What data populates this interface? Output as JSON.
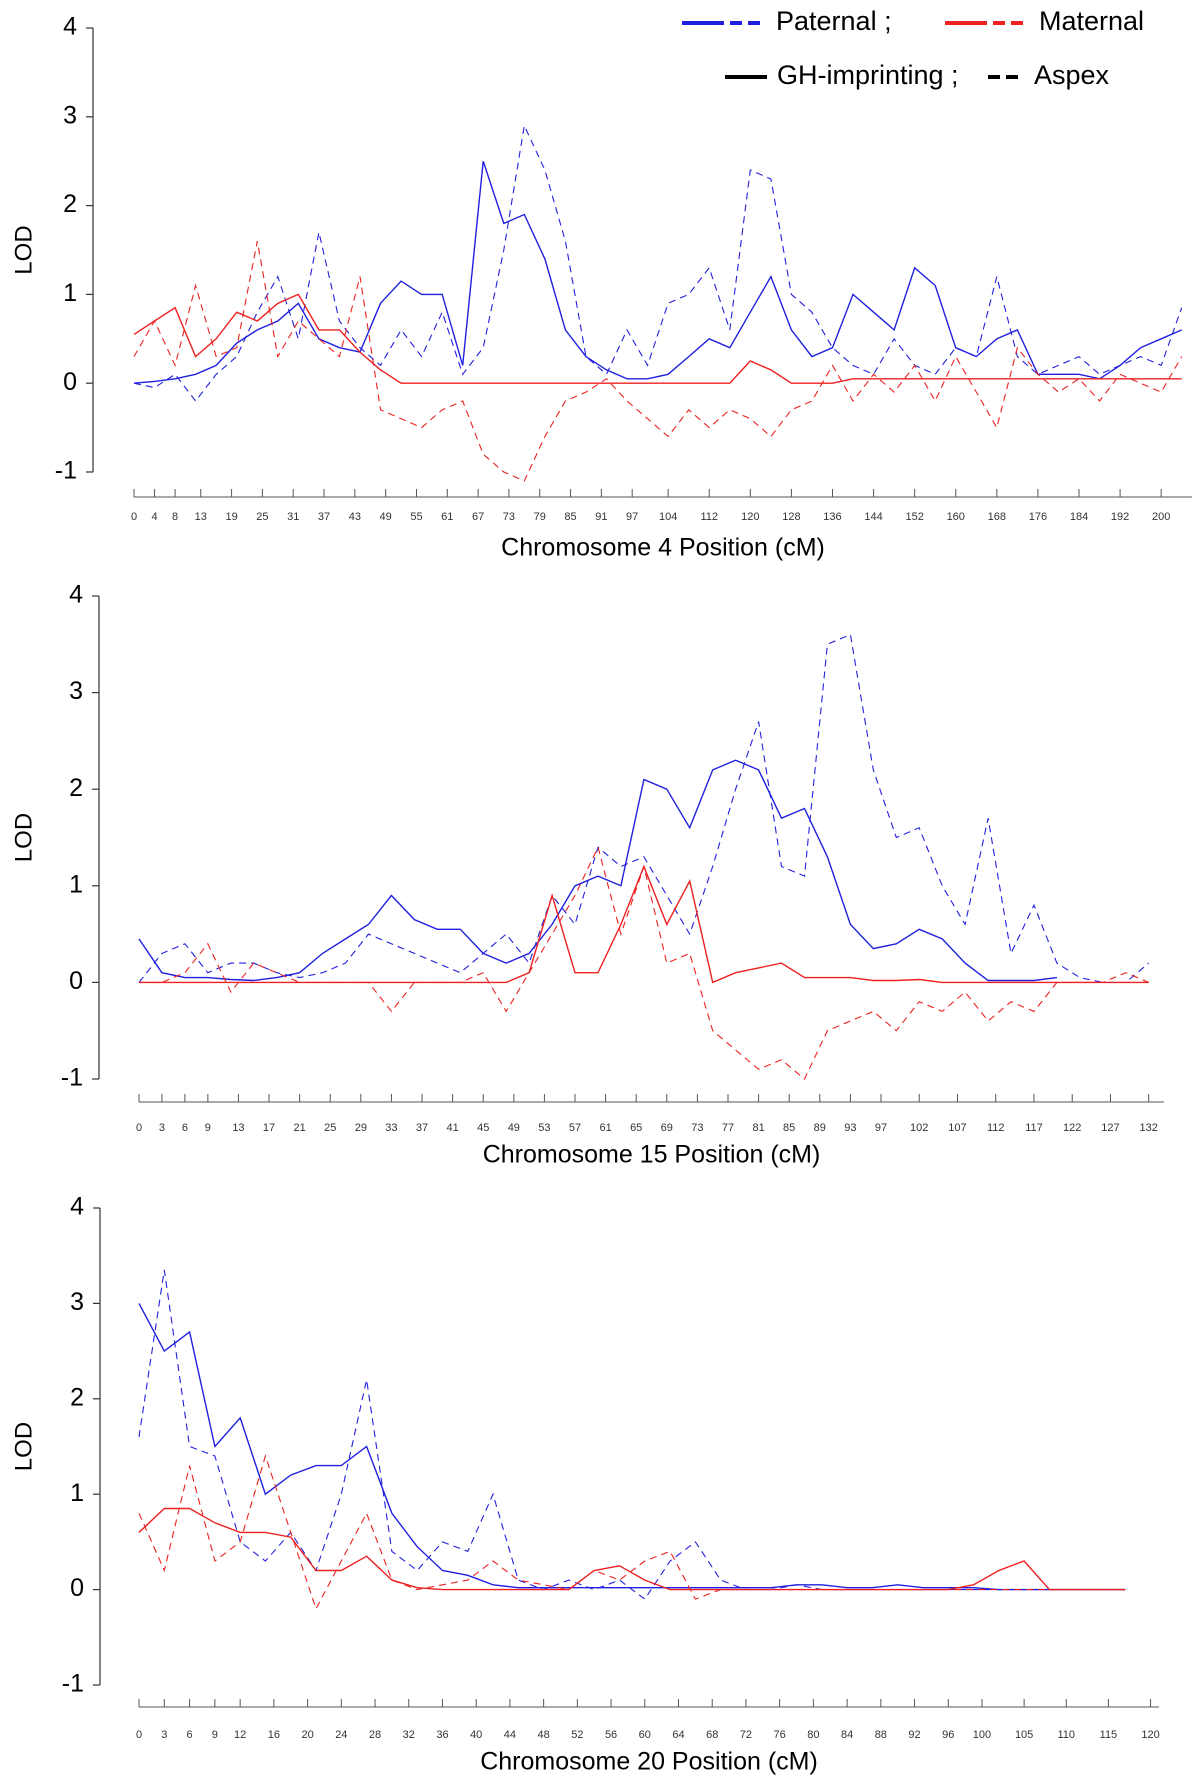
{
  "legend": [
    {
      "label": "Paternal ;",
      "color": "#2020e0",
      "styles": [
        "solid",
        "dashed"
      ]
    },
    {
      "label": "Maternal",
      "color": "#ee2020",
      "styles": [
        "solid",
        "dashed"
      ]
    },
    {
      "label": "GH-imprinting ;",
      "color": "#000000",
      "styles": [
        "solid"
      ]
    },
    {
      "label": "Aspex",
      "color": "#000000",
      "styles": [
        "dashed"
      ]
    }
  ],
  "chart_data": [
    {
      "type": "line",
      "xlabel": "Chromosome 4 Position (cM)",
      "ylabel": "LOD",
      "x": [
        0,
        4,
        8,
        12,
        16,
        20,
        24,
        28,
        32,
        36,
        40,
        44,
        48,
        52,
        56,
        60,
        64,
        68,
        72,
        76,
        80,
        84,
        88,
        92,
        96,
        100,
        104,
        108,
        112,
        116,
        120,
        124,
        128,
        132,
        136,
        140,
        144,
        148,
        152,
        156,
        160,
        164,
        168,
        172,
        176,
        180,
        184,
        188,
        192,
        196,
        200,
        204
      ],
      "xlim": [
        0,
        206
      ],
      "xticks": [
        0,
        4,
        8,
        13,
        19,
        25,
        31,
        37,
        43,
        49,
        55,
        61,
        67,
        73,
        79,
        85,
        91,
        97,
        104,
        112,
        120,
        128,
        136,
        144,
        152,
        160,
        168,
        176,
        184,
        192,
        200
      ],
      "ylim": [
        -1,
        4
      ],
      "yticks": [
        -1,
        0,
        1,
        2,
        3,
        4
      ],
      "series": [
        {
          "color": "#2020e0",
          "style": "solid",
          "values": [
            0,
            0.02,
            0.05,
            0.1,
            0.2,
            0.45,
            0.6,
            0.7,
            0.9,
            0.5,
            0.4,
            0.35,
            0.9,
            1.15,
            1.0,
            1.0,
            0.2,
            2.5,
            1.8,
            1.9,
            1.4,
            0.6,
            0.3,
            0.15,
            0.05,
            0.05,
            0.1,
            0.3,
            0.5,
            0.4,
            0.8,
            1.2,
            0.6,
            0.3,
            0.4,
            1.0,
            0.8,
            0.6,
            1.3,
            1.1,
            0.4,
            0.3,
            0.5,
            0.6,
            0.1,
            0.1,
            0.1,
            0.05,
            0.2,
            0.4,
            0.5,
            0.6
          ]
        },
        {
          "color": "#2020e0",
          "style": "dashed",
          "values": [
            0,
            -0.05,
            0.1,
            -0.2,
            0.1,
            0.3,
            0.8,
            1.2,
            0.5,
            1.7,
            0.7,
            0.4,
            0.2,
            0.6,
            0.3,
            0.8,
            0.1,
            0.4,
            1.5,
            2.9,
            2.4,
            1.6,
            0.3,
            0.1,
            0.6,
            0.2,
            0.9,
            1.0,
            1.3,
            0.6,
            2.4,
            2.3,
            1.0,
            0.8,
            0.4,
            0.2,
            0.1,
            0.5,
            0.2,
            0.1,
            0.4,
            0.3,
            1.2,
            0.3,
            0.1,
            0.2,
            0.3,
            0.1,
            0.2,
            0.3,
            0.2,
            0.85
          ]
        },
        {
          "color": "#ee2020",
          "style": "solid",
          "values": [
            0.55,
            0.7,
            0.85,
            0.3,
            0.5,
            0.8,
            0.7,
            0.9,
            1.0,
            0.6,
            0.6,
            0.35,
            0.15,
            0,
            0,
            0,
            0,
            0,
            0,
            0,
            0,
            0,
            0,
            0,
            0,
            0,
            0,
            0,
            0,
            0,
            0.25,
            0.15,
            0,
            0,
            0,
            0.05,
            0.05,
            0.05,
            0.05,
            0.05,
            0.05,
            0.05,
            0.05,
            0.05,
            0.05,
            0.05,
            0.05,
            0.05,
            0.05,
            0.05,
            0.05,
            0.05
          ]
        },
        {
          "color": "#ee2020",
          "style": "dashed",
          "values": [
            0.3,
            0.7,
            0.2,
            1.1,
            0.3,
            0.4,
            1.6,
            0.3,
            0.7,
            0.5,
            0.3,
            1.2,
            -0.3,
            -0.4,
            -0.5,
            -0.3,
            -0.2,
            -0.8,
            -1.0,
            -1.1,
            -0.6,
            -0.2,
            -0.1,
            0.05,
            -0.2,
            -0.4,
            -0.6,
            -0.3,
            -0.5,
            -0.3,
            -0.4,
            -0.6,
            -0.3,
            -0.2,
            0.2,
            -0.2,
            0.1,
            -0.1,
            0.2,
            -0.2,
            0.3,
            -0.1,
            -0.5,
            0.4,
            0.1,
            -0.1,
            0.05,
            -0.2,
            0.1,
            0,
            -0.1,
            0.3
          ]
        }
      ]
    },
    {
      "type": "line",
      "xlabel": "Chromosome 15 Position (cM)",
      "ylabel": "LOD",
      "x": [
        0,
        3,
        6,
        9,
        12,
        15,
        18,
        21,
        24,
        27,
        30,
        33,
        36,
        39,
        42,
        45,
        48,
        51,
        54,
        57,
        60,
        63,
        66,
        69,
        72,
        75,
        78,
        81,
        84,
        87,
        90,
        93,
        96,
        99,
        102,
        105,
        108,
        111,
        114,
        117,
        120,
        123,
        126,
        129,
        132
      ],
      "xlim": [
        0,
        134
      ],
      "xticks": [
        0,
        3,
        6,
        9,
        13,
        17,
        21,
        25,
        29,
        33,
        37,
        41,
        45,
        49,
        53,
        57,
        61,
        65,
        69,
        73,
        77,
        81,
        85,
        89,
        93,
        97,
        102,
        107,
        112,
        117,
        122,
        127,
        132
      ],
      "ylim": [
        -1,
        4
      ],
      "yticks": [
        -1,
        0,
        1,
        2,
        3,
        4
      ],
      "series": [
        {
          "color": "#2020e0",
          "style": "solid",
          "values": [
            0.45,
            0.1,
            0.05,
            0.05,
            0.03,
            0.02,
            0.05,
            0.1,
            0.3,
            0.45,
            0.6,
            0.9,
            0.65,
            0.55,
            0.55,
            0.3,
            0.2,
            0.3,
            0.6,
            1.0,
            1.1,
            1.0,
            2.1,
            2.0,
            1.6,
            2.2,
            2.3,
            2.2,
            1.7,
            1.8,
            1.3,
            0.6,
            0.35,
            0.4,
            0.55,
            0.45,
            0.2,
            0.02,
            0.02,
            0.02,
            0.05,
            null,
            null,
            null,
            null
          ]
        },
        {
          "color": "#2020e0",
          "style": "dashed",
          "values": [
            0,
            0.3,
            0.4,
            0.1,
            0.2,
            0.2,
            0.1,
            0.05,
            0.1,
            0.2,
            0.5,
            0.4,
            0.3,
            0.2,
            0.1,
            0.3,
            0.5,
            0.2,
            0.9,
            0.6,
            1.4,
            1.2,
            1.3,
            0.9,
            0.5,
            1.2,
            2.0,
            2.7,
            1.2,
            1.1,
            3.5,
            3.6,
            2.2,
            1.5,
            1.6,
            1.0,
            0.6,
            1.7,
            0.3,
            0.8,
            0.2,
            0.05,
            0,
            0,
            0.2
          ]
        },
        {
          "color": "#ee2020",
          "style": "solid",
          "values": [
            0,
            0,
            0,
            0,
            0,
            0,
            0,
            0,
            0,
            0,
            0,
            0,
            0,
            0,
            0,
            0,
            0,
            0.1,
            0.9,
            0.1,
            0.1,
            0.6,
            1.2,
            0.6,
            1.05,
            0,
            0.1,
            0.15,
            0.2,
            0.05,
            0.05,
            0.05,
            0.02,
            0.02,
            0.03,
            0,
            0,
            0,
            0,
            0,
            0,
            0,
            0,
            0,
            0
          ]
        },
        {
          "color": "#ee2020",
          "style": "dashed",
          "values": [
            0,
            0,
            0.1,
            0.4,
            -0.1,
            0.2,
            0.1,
            0,
            0,
            0,
            0,
            -0.3,
            0,
            0,
            0,
            0.1,
            -0.3,
            0.1,
            0.5,
            0.9,
            1.4,
            0.5,
            1.2,
            0.2,
            0.3,
            -0.5,
            -0.7,
            -0.9,
            -0.8,
            -1.0,
            -0.5,
            -0.4,
            -0.3,
            -0.5,
            -0.2,
            -0.3,
            -0.1,
            -0.4,
            -0.2,
            -0.3,
            0,
            0,
            0,
            0.1,
            0
          ]
        }
      ]
    },
    {
      "type": "line",
      "xlabel": "Chromosome 20 Position (cM)",
      "ylabel": "LOD",
      "x": [
        0,
        3,
        6,
        9,
        12,
        15,
        18,
        21,
        24,
        27,
        30,
        33,
        36,
        39,
        42,
        45,
        48,
        51,
        54,
        57,
        60,
        63,
        66,
        69,
        72,
        75,
        78,
        81,
        84,
        87,
        90,
        93,
        96,
        99,
        102,
        105,
        108,
        111,
        114,
        117
      ],
      "xlim": [
        0,
        121
      ],
      "xticks": [
        0,
        3,
        6,
        9,
        12,
        16,
        20,
        24,
        28,
        32,
        36,
        40,
        44,
        48,
        52,
        56,
        60,
        64,
        68,
        72,
        76,
        80,
        84,
        88,
        92,
        96,
        100,
        105,
        110,
        115,
        120
      ],
      "ylim": [
        -1,
        4
      ],
      "yticks": [
        -1,
        0,
        1,
        2,
        3,
        4
      ],
      "series": [
        {
          "color": "#2020e0",
          "style": "solid",
          "values": [
            3.0,
            2.5,
            2.7,
            1.5,
            1.8,
            1.0,
            1.2,
            1.3,
            1.3,
            1.5,
            0.8,
            0.45,
            0.2,
            0.15,
            0.05,
            0.02,
            0.02,
            0.02,
            0.02,
            0.02,
            0.02,
            0.02,
            0.02,
            0.02,
            0.02,
            0.02,
            0.05,
            0.05,
            0.02,
            0.02,
            0.05,
            0.02,
            0.02,
            0.02,
            0,
            0,
            0,
            0,
            0,
            0
          ]
        },
        {
          "color": "#2020e0",
          "style": "dashed",
          "values": [
            1.6,
            3.35,
            1.5,
            1.4,
            0.5,
            0.3,
            0.6,
            0.2,
            1.0,
            2.2,
            0.4,
            0.2,
            0.5,
            0.4,
            1.0,
            0.1,
            0,
            0.1,
            0,
            0.1,
            -0.1,
            0.3,
            0.5,
            0.1,
            0,
            0,
            0.05,
            0,
            0,
            0,
            0,
            0,
            0,
            0,
            0,
            0,
            0,
            0,
            0,
            0
          ]
        },
        {
          "color": "#ee2020",
          "style": "solid",
          "values": [
            0.6,
            0.85,
            0.85,
            0.7,
            0.6,
            0.6,
            0.55,
            0.2,
            0.2,
            0.35,
            0.1,
            0.02,
            0,
            0,
            0,
            0,
            0,
            0,
            0.2,
            0.25,
            0.1,
            0,
            0,
            0,
            0,
            0,
            0,
            0,
            0,
            0,
            0,
            0,
            0,
            0.05,
            0.2,
            0.3,
            0,
            0,
            0,
            0
          ]
        },
        {
          "color": "#ee2020",
          "style": "dashed",
          "values": [
            0.8,
            0.2,
            1.3,
            0.3,
            0.5,
            1.4,
            0.6,
            -0.2,
            0.3,
            0.8,
            0.1,
            0,
            0.05,
            0.1,
            0.3,
            0.1,
            0.05,
            0,
            0.2,
            0.1,
            0.3,
            0.4,
            -0.1,
            0,
            0,
            0,
            0,
            0,
            0,
            0,
            0,
            0,
            0,
            0,
            0,
            0,
            0,
            0,
            0,
            0
          ]
        }
      ]
    }
  ]
}
